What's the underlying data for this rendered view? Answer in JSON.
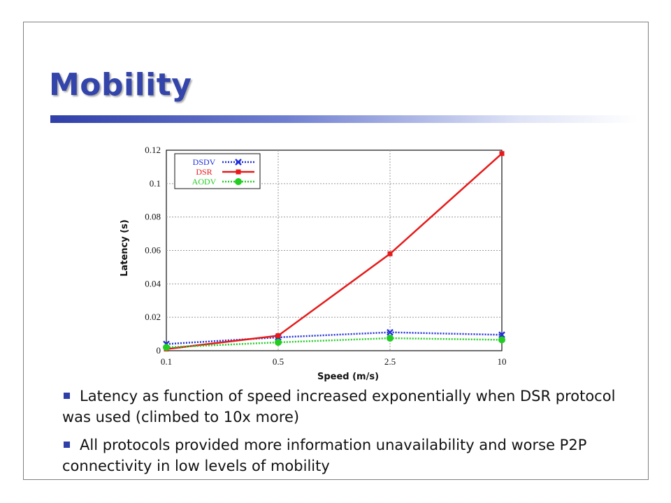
{
  "slide": {
    "title": "Mobility",
    "bullets": [
      "Latency as function of speed increased exponentially when DSR protocol was used (climbed to 10x more)",
      "All protocols provided more information unavailability and worse P2P connectivity in low levels of mobility"
    ]
  },
  "colors": {
    "title": "#3344aa",
    "accent": "#2f3fa8",
    "dsdv": "#1f2fd8",
    "dsr": "#e61a1a",
    "aodv": "#22cc22"
  },
  "chart_data": {
    "type": "line",
    "xlabel": "Speed (m/s)",
    "ylabel": "Latency (s)",
    "categories": [
      "0.1",
      "0.5",
      "2.5",
      "10"
    ],
    "yticks": [
      "0",
      "0.02",
      "0.04",
      "0.06",
      "0.08",
      "0.1",
      "0.12"
    ],
    "ylim": [
      0,
      0.12
    ],
    "grid": true,
    "legend_position": "top-left",
    "series": [
      {
        "name": "DSDV",
        "values": [
          0.004,
          0.008,
          0.011,
          0.0095
        ],
        "color": "#1f2fd8",
        "marker": "x",
        "style": "dotted"
      },
      {
        "name": "DSR",
        "values": [
          0.001,
          0.009,
          0.058,
          0.118
        ],
        "color": "#e61a1a",
        "marker": "square",
        "style": "solid"
      },
      {
        "name": "AODV",
        "values": [
          0.002,
          0.005,
          0.0075,
          0.0065
        ],
        "color": "#22cc22",
        "marker": "circle",
        "style": "dotted"
      }
    ]
  }
}
